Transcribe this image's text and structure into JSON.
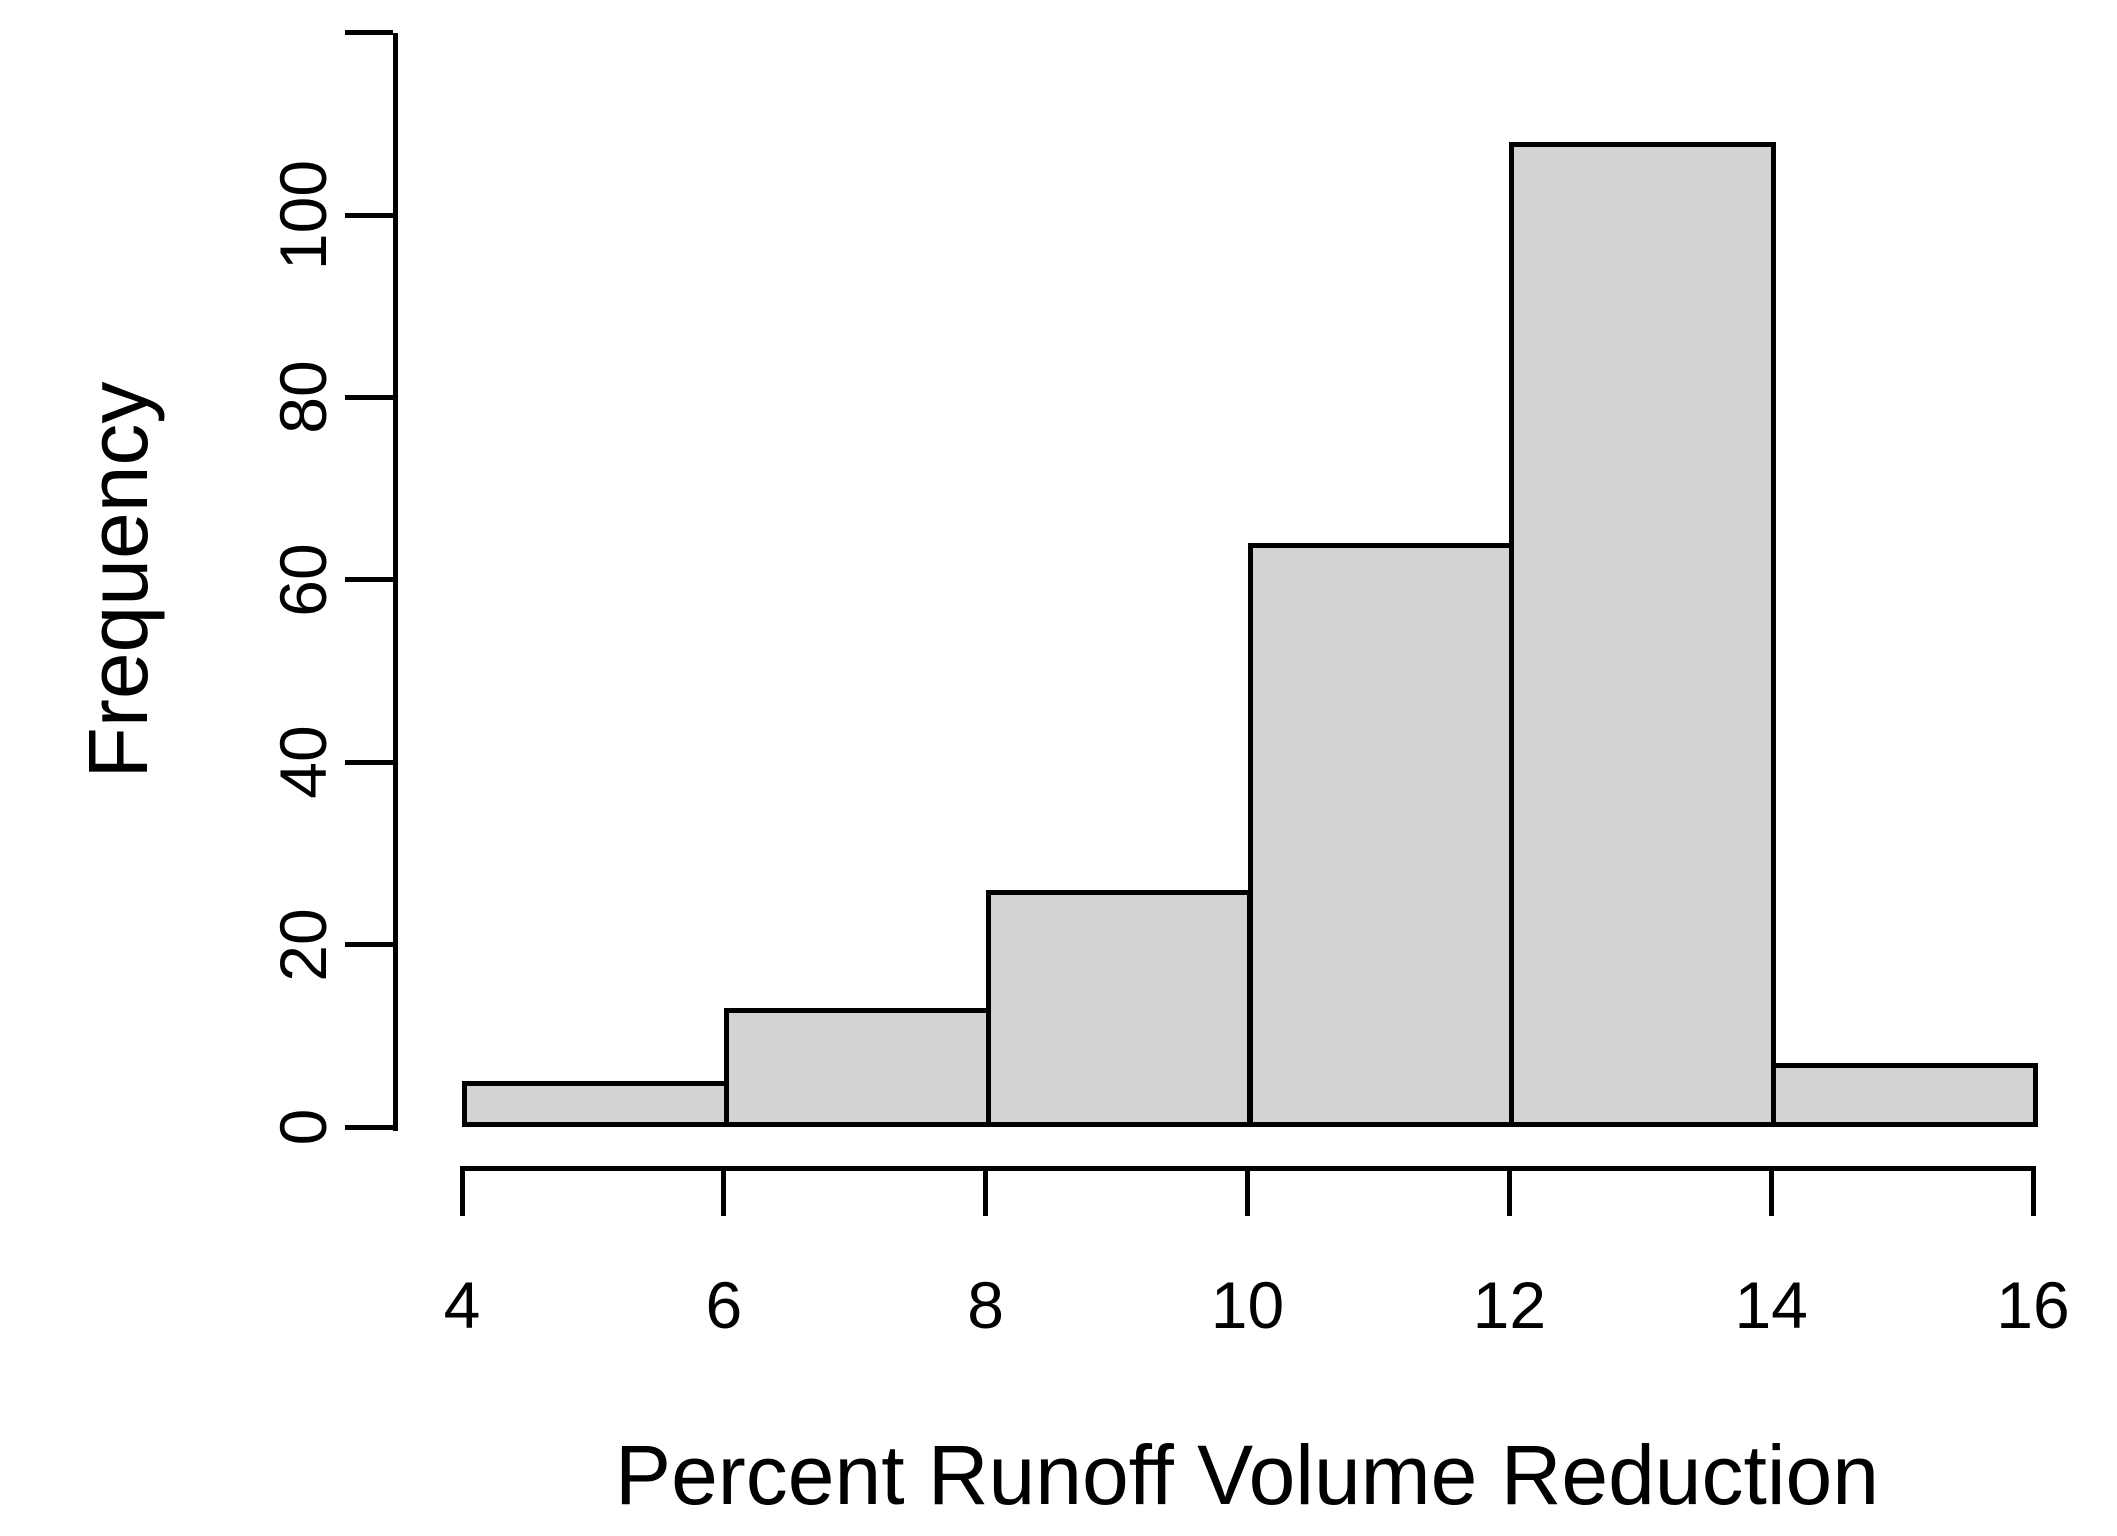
{
  "figure": {
    "background": "#ffffff"
  },
  "chart_data": {
    "type": "bar",
    "subtype": "histogram",
    "title": "",
    "xlabel": "Percent Runoff Volume Reduction",
    "ylabel": "Frequency",
    "bin_edges": [
      4,
      6,
      8,
      10,
      12,
      14,
      16
    ],
    "frequencies": [
      5,
      13,
      26,
      64,
      108,
      7
    ],
    "x_ticks": [
      4,
      6,
      8,
      10,
      12,
      14,
      16
    ],
    "y_ticks": [
      0,
      20,
      40,
      60,
      80,
      100
    ],
    "xlim": [
      4,
      16
    ],
    "ylim": [
      0,
      120
    ],
    "grid": false,
    "legend": false,
    "bar_fill": "#d3d3d3",
    "bar_border": "#000000",
    "axis_color": "#000000"
  }
}
